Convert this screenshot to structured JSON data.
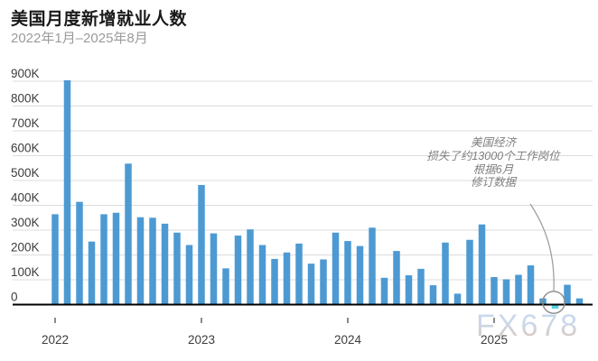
{
  "header": {
    "title": "美国月度新增就业人数",
    "subtitle": "2022年1月–2025年8月"
  },
  "annotation": {
    "lines": [
      "美国经济",
      "损失了约13000个工作岗位",
      "根据6月",
      "修订数据"
    ]
  },
  "watermark": "FX678",
  "chart_data": {
    "type": "bar",
    "title": "美国月度新增就业人数",
    "subtitle": "2022年1月–2025年8月",
    "value_unit": "thousand jobs",
    "x": [
      "2022-01",
      "2022-02",
      "2022-03",
      "2022-04",
      "2022-05",
      "2022-06",
      "2022-07",
      "2022-08",
      "2022-09",
      "2022-10",
      "2022-11",
      "2022-12",
      "2023-01",
      "2023-02",
      "2023-03",
      "2023-04",
      "2023-05",
      "2023-06",
      "2023-07",
      "2023-08",
      "2023-09",
      "2023-10",
      "2023-11",
      "2023-12",
      "2024-01",
      "2024-02",
      "2024-03",
      "2024-04",
      "2024-05",
      "2024-06",
      "2024-07",
      "2024-08",
      "2024-09",
      "2024-10",
      "2024-11",
      "2024-12",
      "2025-01",
      "2025-02",
      "2025-03",
      "2025-04",
      "2025-05",
      "2025-06",
      "2025-07",
      "2025-08"
    ],
    "values": [
      364,
      904,
      414,
      254,
      364,
      370,
      568,
      352,
      350,
      326,
      290,
      240,
      482,
      287,
      146,
      278,
      303,
      240,
      184,
      210,
      246,
      165,
      182,
      290,
      256,
      236,
      310,
      108,
      216,
      118,
      144,
      78,
      250,
      44,
      261,
      323,
      111,
      102,
      120,
      158,
      25,
      -13,
      80,
      25
    ],
    "ylim": [
      0,
      900
    ],
    "yticks": {
      "values": [
        0,
        100,
        200,
        300,
        400,
        500,
        600,
        700,
        800,
        900
      ],
      "labels": [
        "0",
        "100K",
        "200K",
        "300K",
        "400K",
        "500K",
        "600K",
        "700K",
        "800K",
        "900K"
      ]
    },
    "xticks": {
      "labels": [
        "2022",
        "2023",
        "2024",
        "2025"
      ],
      "month_index": [
        0,
        12,
        24,
        36
      ]
    },
    "grid": "horizontal",
    "grid_color": "#dcdcdc",
    "axis_color": "#000000",
    "axis_label_color": "#3d3d3d",
    "bar_color": "#4d9ad3",
    "highlight": {
      "month": "2025-06",
      "value": -13,
      "color": "#55d4de",
      "circled": true,
      "note": "美国经济 损失了约13000个工作岗位 根据6月 修订数据"
    },
    "legend": "none"
  }
}
